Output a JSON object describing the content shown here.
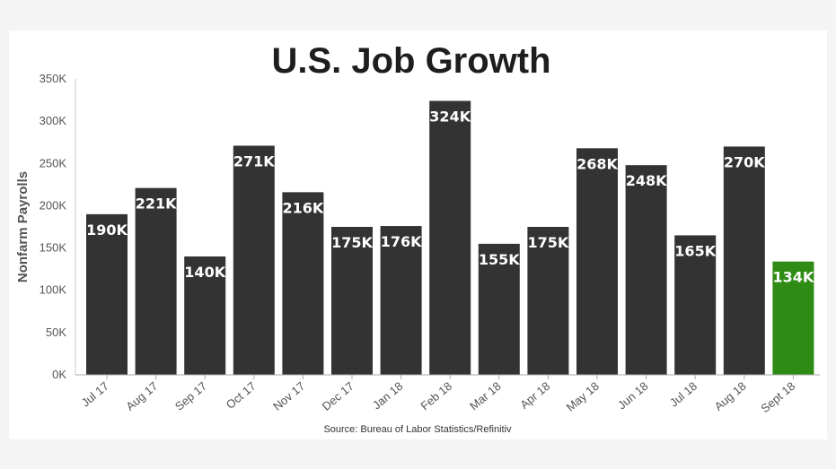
{
  "chart_data": {
    "type": "bar",
    "title": "U.S. Job Growth",
    "ylabel": "Nonfarm Payrolls",
    "xlabel": "",
    "ylim": [
      0,
      350
    ],
    "yticks": [
      0,
      50,
      100,
      150,
      200,
      250,
      300,
      350
    ],
    "ytick_labels": [
      "0K",
      "50K",
      "100K",
      "150K",
      "200K",
      "250K",
      "300K",
      "350K"
    ],
    "grid": false,
    "categories": [
      "Jul 17",
      "Aug 17",
      "Sep 17",
      "Oct 17",
      "Nov 17",
      "Dec 17",
      "Jan 18",
      "Feb 18",
      "Mar 18",
      "Apr 18",
      "May 18",
      "Jun 18",
      "Jul 18",
      "Aug 18",
      "Sept 18"
    ],
    "values": [
      190,
      221,
      140,
      271,
      216,
      175,
      176,
      324,
      155,
      175,
      268,
      248,
      165,
      270,
      134
    ],
    "value_labels": [
      "190K",
      "221K",
      "140K",
      "271K",
      "216K",
      "175K",
      "176K",
      "324K",
      "155K",
      "175K",
      "268K",
      "248K",
      "165K",
      "270K",
      "134K"
    ],
    "bar_color": "#333333",
    "highlight_color": "#2e8b14",
    "highlight_index": 14,
    "source": "Source: Bureau of Labor Statistics/Refinitiv"
  }
}
